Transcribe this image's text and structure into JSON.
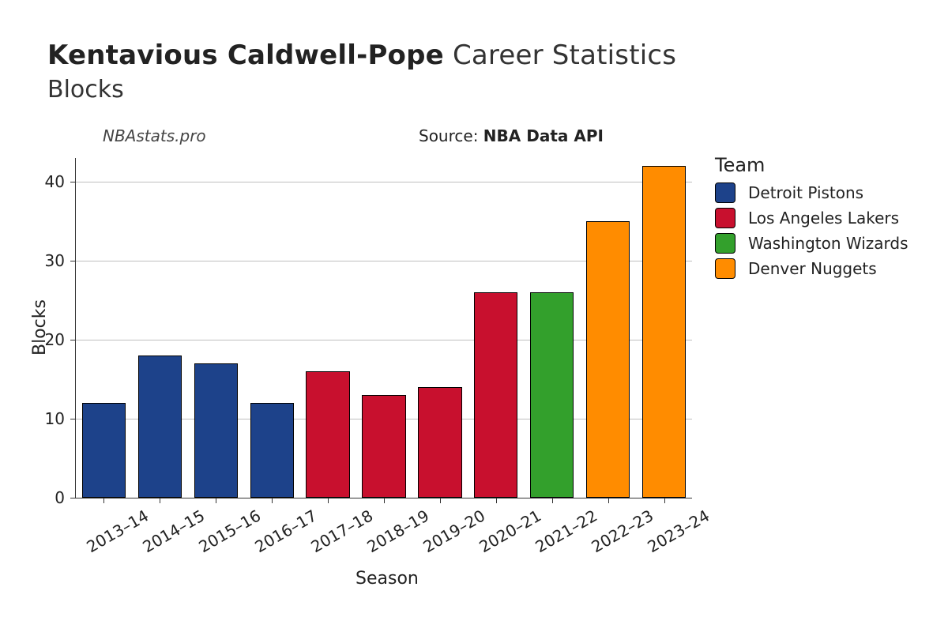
{
  "title": {
    "player": "Kentavious Caldwell-Pope",
    "suffix": "Career Statistics",
    "stat": "Blocks",
    "title_fontsize": 34,
    "subtitle_fontsize": 30
  },
  "watermark": "NBAstats.pro",
  "source_prefix": "Source: ",
  "source_name": "NBA Data API",
  "chart": {
    "type": "bar",
    "ylabel": "Blocks",
    "xlabel": "Season",
    "label_fontsize": 22,
    "tick_fontsize": 20,
    "ylim": [
      0,
      43
    ],
    "yticks": [
      0,
      10,
      20,
      30,
      40
    ],
    "background_color": "#ffffff",
    "grid_color": "#bfbfbf",
    "axis_color": "#333333",
    "bar_border_color": "#000000",
    "bar_width_ratio": 0.78,
    "xtick_rotation_deg": -30,
    "seasons": [
      "2013–14",
      "2014–15",
      "2015–16",
      "2016–17",
      "2017–18",
      "2018–19",
      "2019–20",
      "2020–21",
      "2021–22",
      "2022–23",
      "2023–24"
    ],
    "values": [
      12,
      18,
      17,
      12,
      16,
      13,
      14,
      26,
      26,
      35,
      42
    ],
    "team_keys": [
      "pistons",
      "pistons",
      "pistons",
      "pistons",
      "lakers",
      "lakers",
      "lakers",
      "lakers",
      "wizards",
      "nuggets",
      "nuggets"
    ]
  },
  "teams": {
    "pistons": {
      "label": "Detroit Pistons",
      "color": "#1d428a"
    },
    "lakers": {
      "label": "Los Angeles Lakers",
      "color": "#c8102e"
    },
    "wizards": {
      "label": "Washington Wizards",
      "color": "#33a02c"
    },
    "nuggets": {
      "label": "Denver Nuggets",
      "color": "#ff8c00"
    }
  },
  "legend": {
    "title": "Team",
    "order": [
      "pistons",
      "lakers",
      "wizards",
      "nuggets"
    ],
    "title_fontsize": 24,
    "item_fontsize": 20
  }
}
